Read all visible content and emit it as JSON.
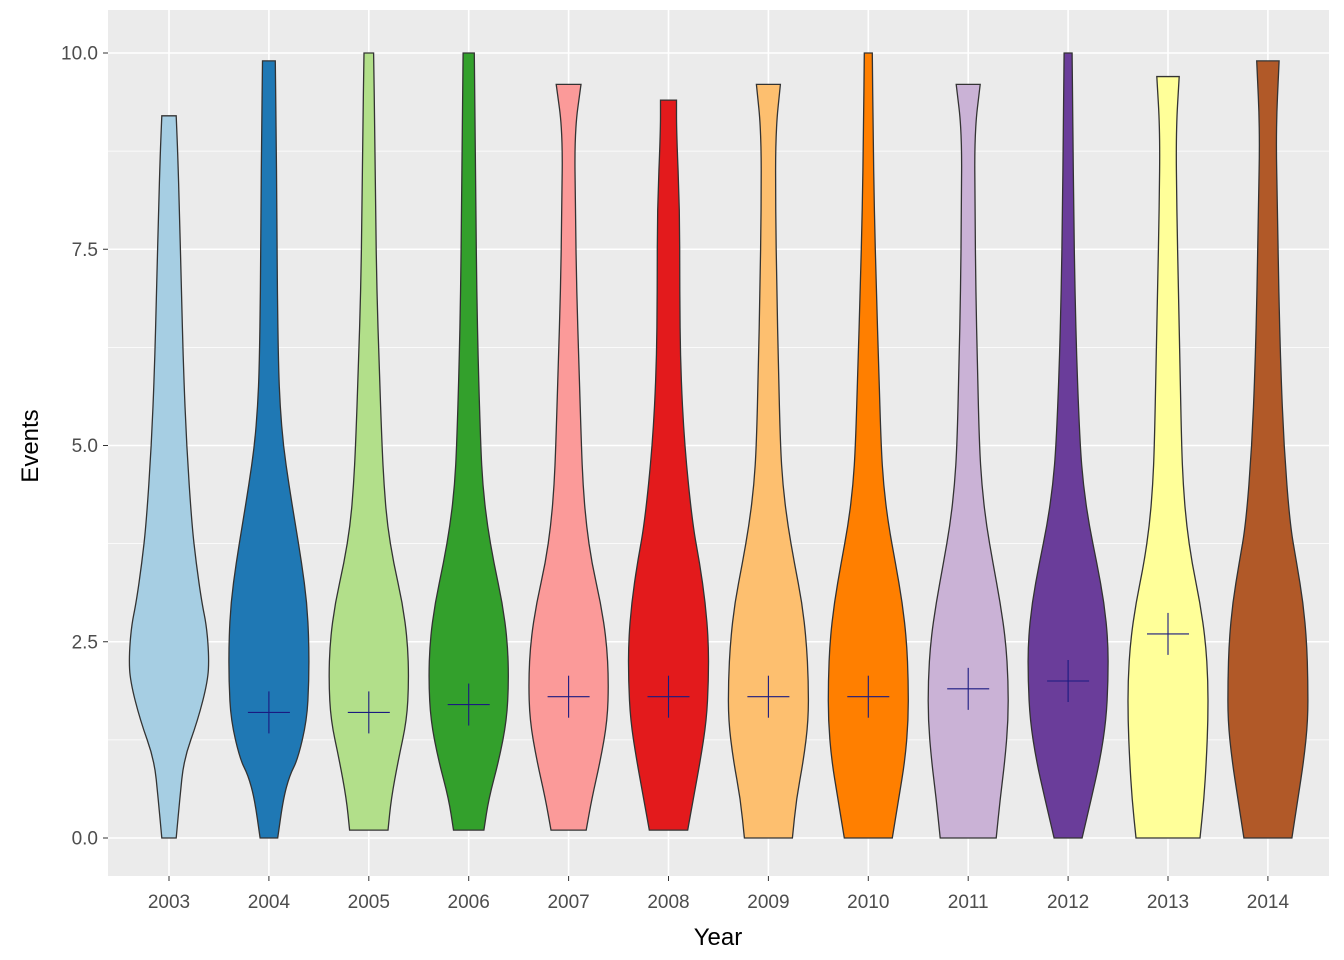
{
  "chart_data": {
    "type": "violin",
    "xlabel": "Year",
    "ylabel": "Events",
    "ylim": [
      -0.45,
      10.5
    ],
    "y_ticks": [
      "0.0",
      "2.5",
      "5.0",
      "7.5",
      "10.0"
    ],
    "y_tick_values": [
      0,
      2.5,
      5,
      7.5,
      10
    ],
    "grid": true,
    "background": "#ebebeb",
    "categories": [
      "2003",
      "2004",
      "2005",
      "2006",
      "2007",
      "2008",
      "2009",
      "2010",
      "2011",
      "2012",
      "2013",
      "2014"
    ],
    "series": [
      {
        "category": "2003",
        "fill": "#a6cee3",
        "min": 0.0,
        "max": 9.2,
        "mean": null,
        "profile": [
          [
            0.0,
            0.18
          ],
          [
            0.5,
            0.27
          ],
          [
            1.0,
            0.37
          ],
          [
            1.5,
            0.72
          ],
          [
            2.0,
            0.97
          ],
          [
            2.3,
            1.0
          ],
          [
            2.7,
            0.94
          ],
          [
            3.0,
            0.82
          ],
          [
            3.5,
            0.68
          ],
          [
            4.0,
            0.57
          ],
          [
            5.0,
            0.44
          ],
          [
            6.0,
            0.36
          ],
          [
            7.0,
            0.31
          ],
          [
            8.0,
            0.26
          ],
          [
            8.7,
            0.22
          ],
          [
            9.2,
            0.18
          ]
        ]
      },
      {
        "category": "2004",
        "fill": "#1f78b4",
        "min": 0.0,
        "max": 9.9,
        "mean": 1.6,
        "profile": [
          [
            0.0,
            0.22
          ],
          [
            0.5,
            0.36
          ],
          [
            0.8,
            0.52
          ],
          [
            1.0,
            0.72
          ],
          [
            1.5,
            0.95
          ],
          [
            2.0,
            1.0
          ],
          [
            2.5,
            1.0
          ],
          [
            3.0,
            0.95
          ],
          [
            3.5,
            0.82
          ],
          [
            4.0,
            0.66
          ],
          [
            4.5,
            0.5
          ],
          [
            5.0,
            0.36
          ],
          [
            5.5,
            0.28
          ],
          [
            6.0,
            0.24
          ],
          [
            7.0,
            0.21
          ],
          [
            8.0,
            0.2
          ],
          [
            9.0,
            0.18
          ],
          [
            9.9,
            0.16
          ]
        ]
      },
      {
        "category": "2005",
        "fill": "#b2df8a",
        "min": 0.1,
        "max": 10.0,
        "mean": 1.6,
        "profile": [
          [
            0.1,
            0.48
          ],
          [
            0.5,
            0.56
          ],
          [
            1.0,
            0.74
          ],
          [
            1.5,
            0.95
          ],
          [
            2.0,
            1.0
          ],
          [
            2.5,
            0.97
          ],
          [
            3.0,
            0.84
          ],
          [
            3.5,
            0.62
          ],
          [
            4.0,
            0.46
          ],
          [
            4.5,
            0.38
          ],
          [
            5.0,
            0.33
          ],
          [
            6.0,
            0.26
          ],
          [
            7.0,
            0.2
          ],
          [
            8.0,
            0.17
          ],
          [
            9.0,
            0.15
          ],
          [
            10.0,
            0.12
          ]
        ]
      },
      {
        "category": "2006",
        "fill": "#33a02c",
        "min": 0.1,
        "max": 10.0,
        "mean": 1.7,
        "profile": [
          [
            0.1,
            0.38
          ],
          [
            0.5,
            0.5
          ],
          [
            1.0,
            0.76
          ],
          [
            1.5,
            0.95
          ],
          [
            2.0,
            1.0
          ],
          [
            2.5,
            0.97
          ],
          [
            3.0,
            0.84
          ],
          [
            3.5,
            0.63
          ],
          [
            4.0,
            0.46
          ],
          [
            4.5,
            0.35
          ],
          [
            5.0,
            0.3
          ],
          [
            6.0,
            0.24
          ],
          [
            7.0,
            0.2
          ],
          [
            8.0,
            0.18
          ],
          [
            9.0,
            0.16
          ],
          [
            10.0,
            0.14
          ]
        ]
      },
      {
        "category": "2007",
        "fill": "#fb9a99",
        "min": 0.1,
        "max": 9.6,
        "mean": 1.8,
        "profile": [
          [
            0.1,
            0.44
          ],
          [
            0.5,
            0.58
          ],
          [
            1.0,
            0.8
          ],
          [
            1.5,
            0.97
          ],
          [
            2.0,
            1.0
          ],
          [
            2.5,
            0.95
          ],
          [
            3.0,
            0.8
          ],
          [
            3.5,
            0.58
          ],
          [
            4.0,
            0.44
          ],
          [
            4.5,
            0.36
          ],
          [
            5.0,
            0.32
          ],
          [
            6.0,
            0.26
          ],
          [
            7.0,
            0.2
          ],
          [
            8.0,
            0.17
          ],
          [
            9.0,
            0.15
          ],
          [
            9.6,
            0.31
          ]
        ]
      },
      {
        "category": "2008",
        "fill": "#e31a1c",
        "min": 0.1,
        "max": 9.4,
        "mean": 1.8,
        "profile": [
          [
            0.1,
            0.48
          ],
          [
            0.5,
            0.62
          ],
          [
            1.0,
            0.8
          ],
          [
            1.5,
            0.95
          ],
          [
            2.0,
            1.0
          ],
          [
            2.5,
            1.0
          ],
          [
            3.0,
            0.92
          ],
          [
            3.5,
            0.78
          ],
          [
            4.0,
            0.6
          ],
          [
            5.0,
            0.4
          ],
          [
            6.0,
            0.3
          ],
          [
            7.0,
            0.28
          ],
          [
            8.0,
            0.28
          ],
          [
            9.0,
            0.2
          ],
          [
            9.4,
            0.2
          ]
        ]
      },
      {
        "category": "2009",
        "fill": "#fdbf6f",
        "min": 0.0,
        "max": 9.6,
        "mean": 1.8,
        "profile": [
          [
            0.0,
            0.6
          ],
          [
            0.5,
            0.7
          ],
          [
            1.0,
            0.88
          ],
          [
            1.5,
            1.0
          ],
          [
            2.0,
            1.0
          ],
          [
            2.5,
            0.95
          ],
          [
            3.0,
            0.84
          ],
          [
            3.5,
            0.65
          ],
          [
            4.0,
            0.48
          ],
          [
            4.5,
            0.36
          ],
          [
            5.0,
            0.3
          ],
          [
            6.0,
            0.25
          ],
          [
            7.0,
            0.21
          ],
          [
            8.0,
            0.18
          ],
          [
            9.0,
            0.18
          ],
          [
            9.6,
            0.3
          ]
        ]
      },
      {
        "category": "2010",
        "fill": "#ff7f00",
        "min": 0.0,
        "max": 10.0,
        "mean": 1.8,
        "profile": [
          [
            0.0,
            0.6
          ],
          [
            0.5,
            0.76
          ],
          [
            1.0,
            0.92
          ],
          [
            1.5,
            1.0
          ],
          [
            2.0,
            1.0
          ],
          [
            2.5,
            0.96
          ],
          [
            3.0,
            0.85
          ],
          [
            3.5,
            0.68
          ],
          [
            4.0,
            0.5
          ],
          [
            4.5,
            0.38
          ],
          [
            5.0,
            0.32
          ],
          [
            6.0,
            0.26
          ],
          [
            7.0,
            0.2
          ],
          [
            8.0,
            0.15
          ],
          [
            9.0,
            0.12
          ],
          [
            10.0,
            0.1
          ]
        ]
      },
      {
        "category": "2011",
        "fill": "#cab2d6",
        "min": 0.0,
        "max": 9.6,
        "mean": 1.9,
        "profile": [
          [
            0.0,
            0.7
          ],
          [
            0.5,
            0.8
          ],
          [
            1.0,
            0.92
          ],
          [
            1.5,
            1.0
          ],
          [
            2.0,
            1.0
          ],
          [
            2.5,
            0.94
          ],
          [
            3.0,
            0.8
          ],
          [
            3.5,
            0.62
          ],
          [
            4.0,
            0.45
          ],
          [
            4.5,
            0.34
          ],
          [
            5.0,
            0.28
          ],
          [
            6.0,
            0.23
          ],
          [
            7.0,
            0.19
          ],
          [
            8.0,
            0.17
          ],
          [
            9.0,
            0.16
          ],
          [
            9.6,
            0.3
          ]
        ]
      },
      {
        "category": "2012",
        "fill": "#6a3d9a",
        "min": 0.0,
        "max": 10.0,
        "mean": 2.0,
        "profile": [
          [
            0.0,
            0.35
          ],
          [
            0.5,
            0.58
          ],
          [
            1.0,
            0.8
          ],
          [
            1.5,
            0.95
          ],
          [
            2.0,
            1.0
          ],
          [
            2.5,
            1.0
          ],
          [
            3.0,
            0.9
          ],
          [
            3.5,
            0.72
          ],
          [
            4.0,
            0.52
          ],
          [
            4.5,
            0.38
          ],
          [
            5.0,
            0.3
          ],
          [
            6.0,
            0.22
          ],
          [
            7.0,
            0.17
          ],
          [
            8.0,
            0.14
          ],
          [
            9.0,
            0.12
          ],
          [
            10.0,
            0.1
          ]
        ]
      },
      {
        "category": "2013",
        "fill": "#ffff99",
        "min": 0.0,
        "max": 9.7,
        "mean": 2.6,
        "profile": [
          [
            0.0,
            0.8
          ],
          [
            0.5,
            0.9
          ],
          [
            1.0,
            0.96
          ],
          [
            1.5,
            1.0
          ],
          [
            2.0,
            1.0
          ],
          [
            2.5,
            0.94
          ],
          [
            3.0,
            0.8
          ],
          [
            3.5,
            0.6
          ],
          [
            4.0,
            0.46
          ],
          [
            4.5,
            0.38
          ],
          [
            5.0,
            0.34
          ],
          [
            6.0,
            0.3
          ],
          [
            7.0,
            0.26
          ],
          [
            8.0,
            0.22
          ],
          [
            9.0,
            0.2
          ],
          [
            9.7,
            0.28
          ]
        ]
      },
      {
        "category": "2014",
        "fill": "#b15928",
        "min": 0.0,
        "max": 9.9,
        "mean": null,
        "profile": [
          [
            0.0,
            0.6
          ],
          [
            0.5,
            0.75
          ],
          [
            1.0,
            0.9
          ],
          [
            1.5,
            1.0
          ],
          [
            2.0,
            1.0
          ],
          [
            2.5,
            0.97
          ],
          [
            3.0,
            0.88
          ],
          [
            3.5,
            0.72
          ],
          [
            4.0,
            0.55
          ],
          [
            5.0,
            0.4
          ],
          [
            6.0,
            0.32
          ],
          [
            7.0,
            0.27
          ],
          [
            8.0,
            0.24
          ],
          [
            9.0,
            0.2
          ],
          [
            9.9,
            0.28
          ]
        ]
      }
    ]
  }
}
